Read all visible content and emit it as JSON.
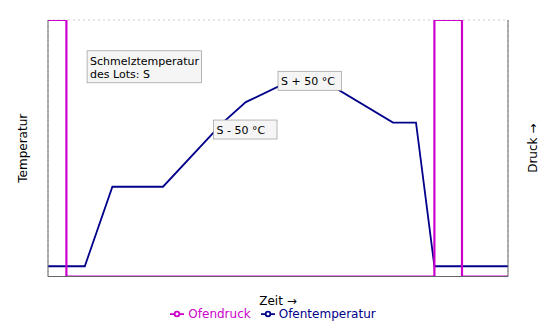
{
  "chart_data": {
    "type": "line",
    "xlabel": "Zeit →",
    "ylabel": "Temperatur",
    "ylabel_right": "Druck →",
    "xlim": [
      0,
      10
    ],
    "ylim": [
      0,
      1.0
    ],
    "xticks": [
      0,
      2,
      4,
      6,
      8,
      10
    ],
    "yticks": [
      0,
      0.2,
      0.4,
      0.6,
      0.8,
      1.0
    ],
    "grid": true,
    "tick_labels": false,
    "legend": "lower center",
    "series": [
      {
        "name": "Ofentemperatur",
        "color": "#00008B",
        "x": [
          0,
          0.8,
          1.4,
          2.5,
          3.8,
          4.3,
          5.0,
          6.2,
          7.5,
          8.0,
          8.4,
          9.2,
          10
        ],
        "values": [
          0.04,
          0.04,
          0.35,
          0.35,
          0.6,
          0.68,
          0.74,
          0.74,
          0.6,
          0.6,
          0.04,
          0.04,
          0.04
        ]
      },
      {
        "name": "Ofendruck",
        "color": "#CC00CC",
        "x": [
          0,
          0.4,
          0.4,
          8.4,
          8.4,
          9.0,
          9.0,
          10
        ],
        "values": [
          1.0,
          1.0,
          0.0,
          0.0,
          1.0,
          1.0,
          0.0,
          0.0
        ]
      }
    ],
    "annotations": [
      {
        "text": "Schmelztemperatur\ndes Lots: S",
        "x": 0.85,
        "y": 0.88
      },
      {
        "text": "S + 50 °C",
        "x": 5.0,
        "y": 0.8
      },
      {
        "text": "S - 50 °C",
        "x": 3.6,
        "y": 0.61
      }
    ]
  }
}
